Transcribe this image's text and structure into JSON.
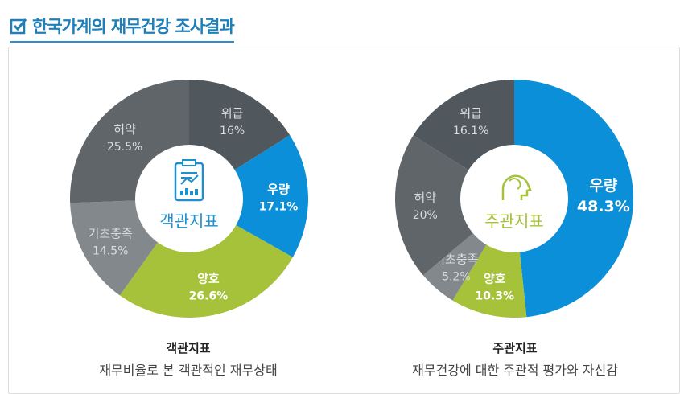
{
  "header": {
    "title": "한국가계의 재무건강 조사결과",
    "icon": "checkbox-icon"
  },
  "chart_data": [
    {
      "type": "pie",
      "variant": "donut",
      "center_label": "객관지표",
      "caption_title": "객관지표",
      "caption_subtitle": "재무비율로 본 객관적인 재무상태",
      "slices": [
        {
          "label": "위급",
          "value": 16,
          "text": "16%",
          "color": "#51585d"
        },
        {
          "label": "우량",
          "value": 17.1,
          "text": "17.1%",
          "color": "#0b8fd8"
        },
        {
          "label": "양호",
          "value": 26.6,
          "text": "26.6%",
          "color": "#a6c13a"
        },
        {
          "label": "기초충족",
          "value": 14.5,
          "text": "14.5%",
          "color": "#82888c"
        },
        {
          "label": "허약",
          "value": 25.5,
          "text": "25.5%",
          "color": "#5f6569"
        }
      ]
    },
    {
      "type": "pie",
      "variant": "donut",
      "center_label": "주관지표",
      "caption_title": "주관지표",
      "caption_subtitle": "재무건강에 대한 주관적 평가와 자신감",
      "slices": [
        {
          "label": "우량",
          "value": 48.3,
          "text": "48.3%",
          "color": "#0b8fd8"
        },
        {
          "label": "양호",
          "value": 10.3,
          "text": "10.3%",
          "color": "#a6c13a"
        },
        {
          "label": "기초충족",
          "value": 5.2,
          "text": "5.2%",
          "color": "#82888c"
        },
        {
          "label": "허약",
          "value": 20,
          "text": "20%",
          "color": "#5f6569"
        },
        {
          "label": "위급",
          "value": 16.1,
          "text": "16.1%",
          "color": "#51585d"
        }
      ]
    }
  ]
}
